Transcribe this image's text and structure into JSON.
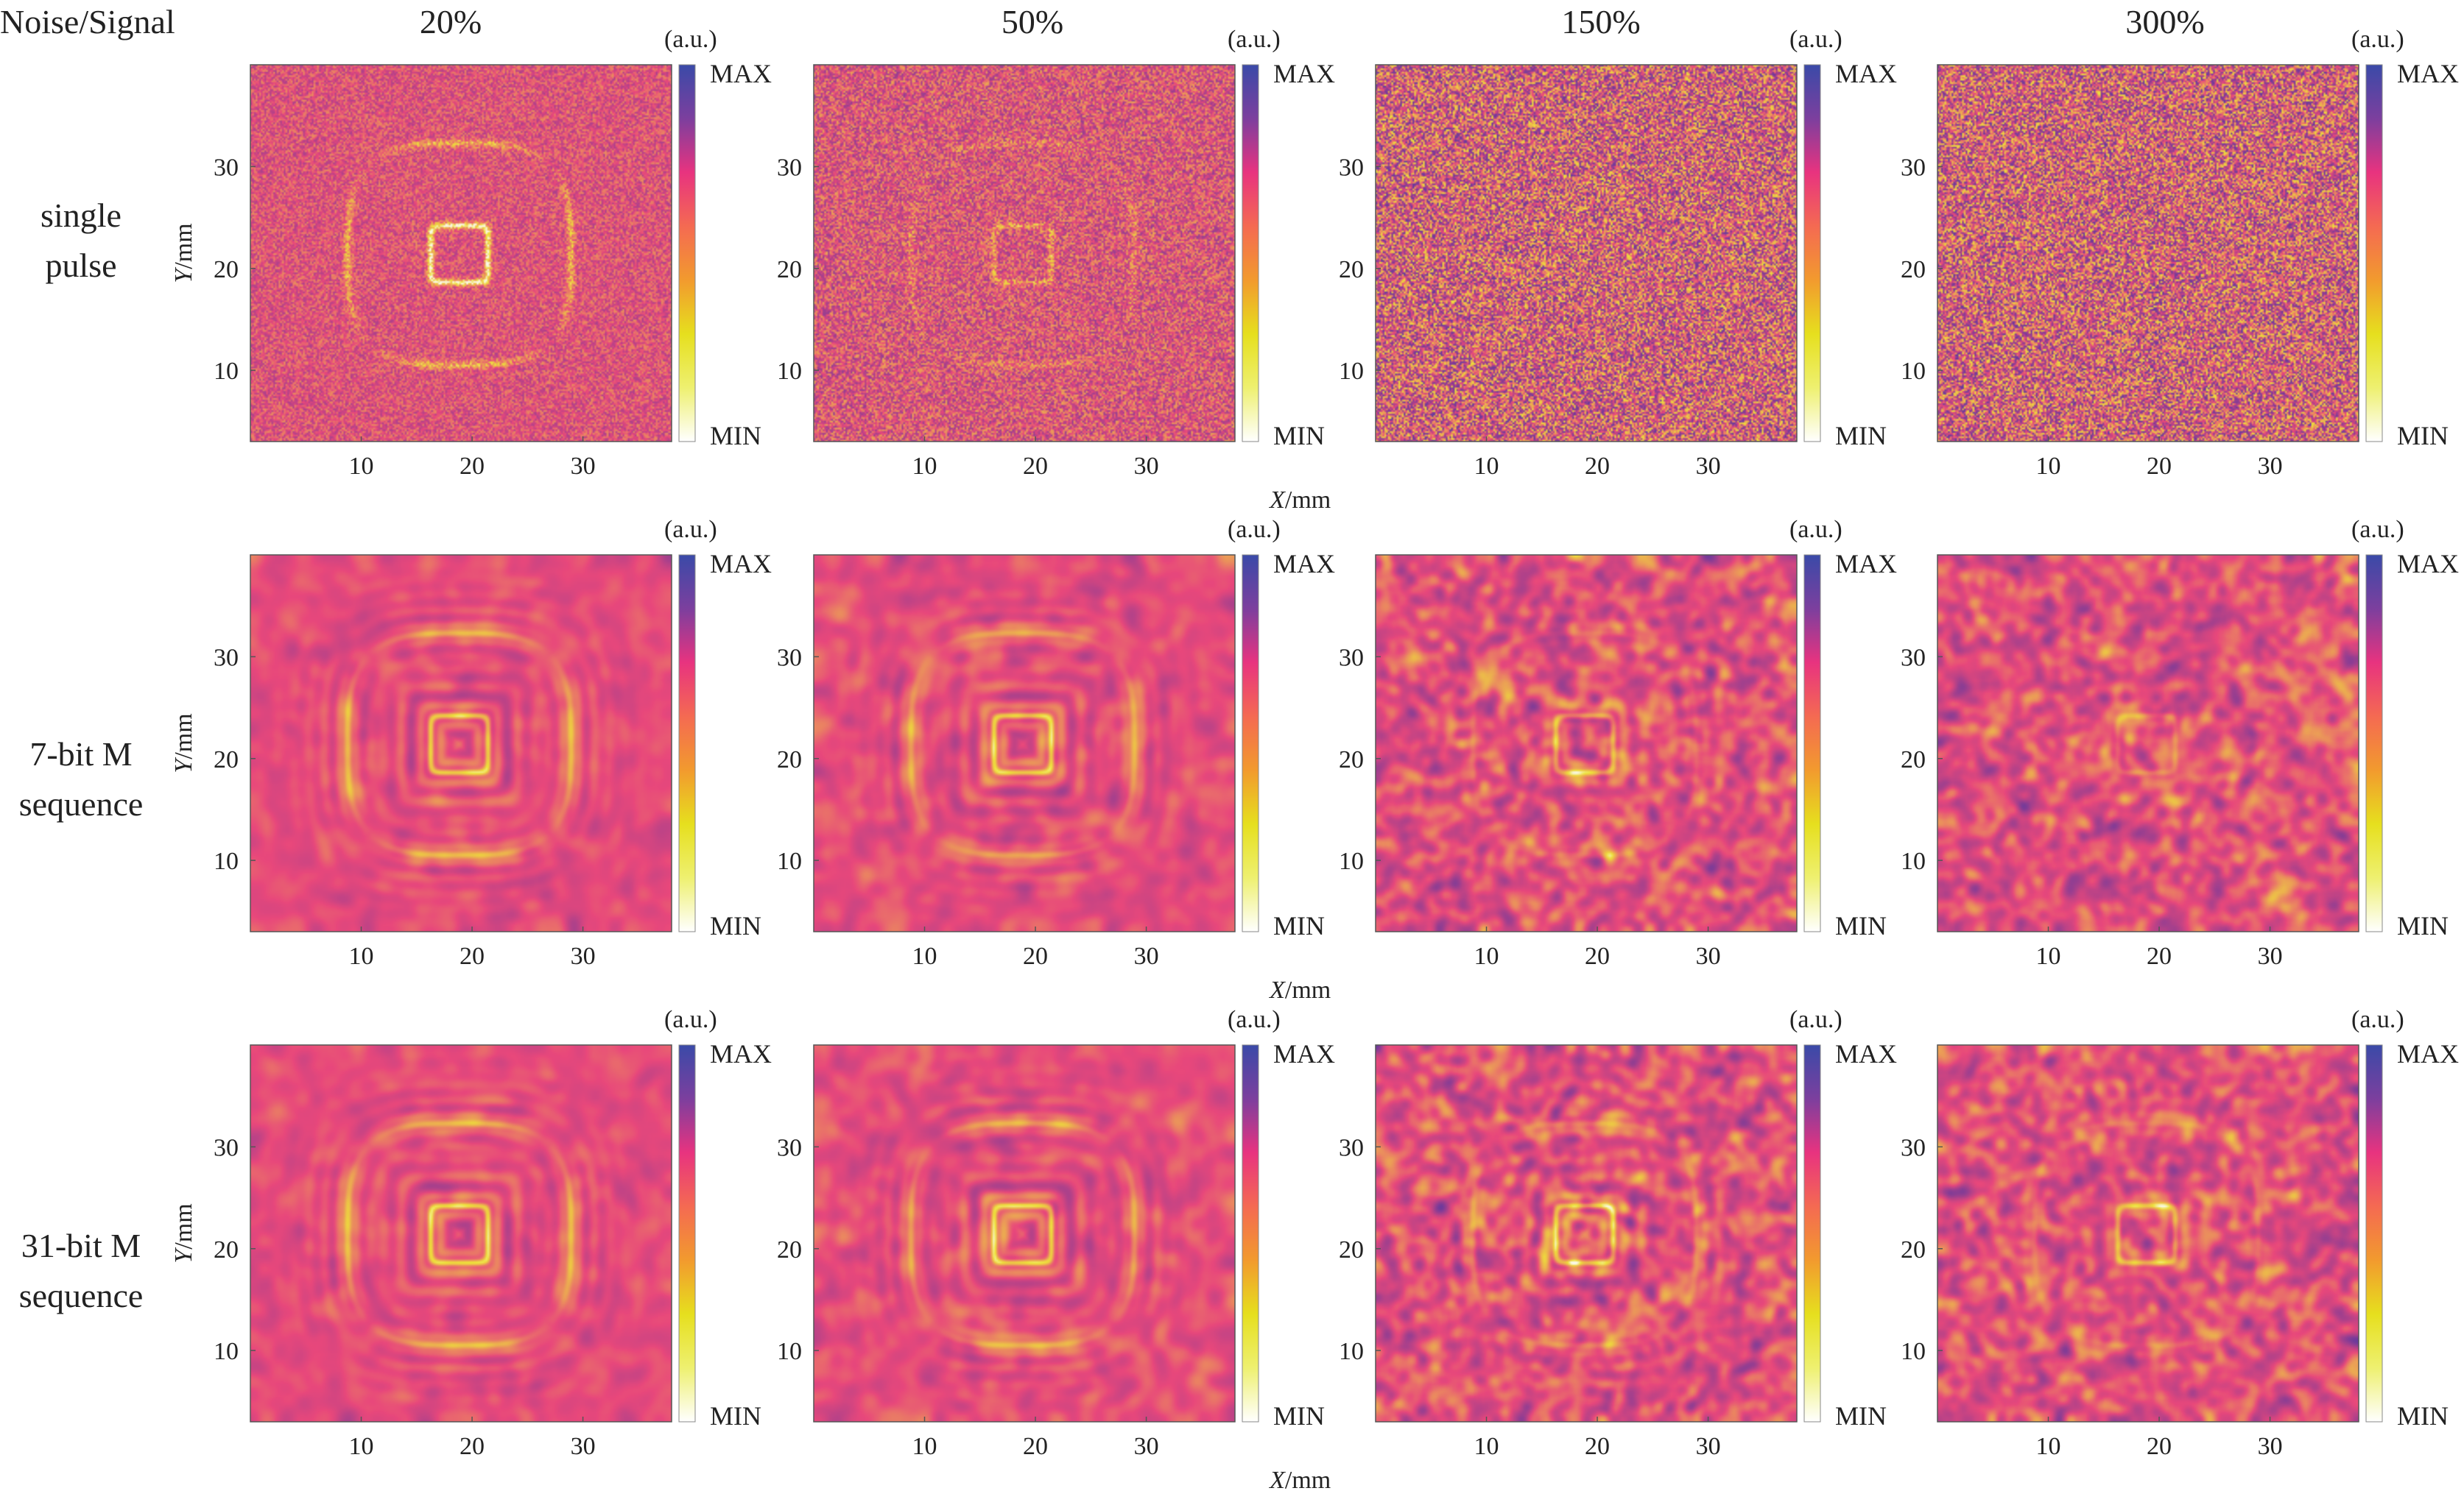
{
  "header": {
    "corner_label": "Noise/Signal",
    "columns": [
      "20%",
      "50%",
      "150%",
      "300%"
    ]
  },
  "rows": [
    {
      "label_lines": [
        "single",
        "pulse"
      ]
    },
    {
      "label_lines": [
        "7-bit M",
        "sequence"
      ]
    },
    {
      "label_lines": [
        "31-bit M",
        "sequence"
      ]
    }
  ],
  "axes": {
    "xlabel_var": "X",
    "xlabel_unit": "/mm",
    "ylabel_var": "Y",
    "ylabel_unit": "/mm",
    "xticks": [
      10,
      20,
      30
    ],
    "yticks": [
      10,
      20,
      30
    ]
  },
  "colorbar": {
    "unit": "(a.u.)",
    "max_label": "MAX",
    "min_label": "MIN",
    "stops": [
      "#3a4aa8",
      "#7c3f9e",
      "#e8337f",
      "#f46a52",
      "#f29a2e",
      "#e6df1e",
      "#eef070",
      "#ffffff"
    ]
  },
  "chart_data": {
    "type": "heatmap",
    "description_grid": "3 rows (excitation type) x 4 columns (noise/signal ratio)",
    "xlim": [
      0,
      38
    ],
    "ylim": [
      3,
      40
    ],
    "column_noise_levels": [
      "20%",
      "50%",
      "150%",
      "300%"
    ],
    "row_excitations": [
      "single pulse",
      "7-bit M sequence",
      "31-bit M sequence"
    ],
    "colors": {
      "background": "#e84a7c",
      "low": "#f2e23a",
      "high": "#6a3c9a"
    },
    "panels": [
      {
        "row": 0,
        "col": 0,
        "noise": 0.2,
        "smoothness": "fine",
        "square_strength": 0.85,
        "ring_strength": 0.55
      },
      {
        "row": 0,
        "col": 1,
        "noise": 0.5,
        "smoothness": "fine",
        "square_strength": 0.35,
        "ring_strength": 0.25
      },
      {
        "row": 0,
        "col": 2,
        "noise": 1.5,
        "smoothness": "fine",
        "square_strength": 0.05,
        "ring_strength": 0.0
      },
      {
        "row": 0,
        "col": 3,
        "noise": 3.0,
        "smoothness": "fine",
        "square_strength": 0.0,
        "ring_strength": 0.0
      },
      {
        "row": 1,
        "col": 0,
        "noise": 0.2,
        "smoothness": "smooth",
        "square_strength": 1.0,
        "ring_strength": 0.9
      },
      {
        "row": 1,
        "col": 1,
        "noise": 0.5,
        "smoothness": "smooth",
        "square_strength": 1.0,
        "ring_strength": 0.7
      },
      {
        "row": 1,
        "col": 2,
        "noise": 1.5,
        "smoothness": "blobby",
        "square_strength": 0.7,
        "ring_strength": 0.35
      },
      {
        "row": 1,
        "col": 3,
        "noise": 3.0,
        "smoothness": "blobby",
        "square_strength": 0.3,
        "ring_strength": 0.12
      },
      {
        "row": 2,
        "col": 0,
        "noise": 0.2,
        "smoothness": "smooth",
        "square_strength": 1.0,
        "ring_strength": 0.9
      },
      {
        "row": 2,
        "col": 1,
        "noise": 0.5,
        "smoothness": "smooth",
        "square_strength": 1.0,
        "ring_strength": 0.8
      },
      {
        "row": 2,
        "col": 2,
        "noise": 1.5,
        "smoothness": "blobby",
        "square_strength": 0.9,
        "ring_strength": 0.55
      },
      {
        "row": 2,
        "col": 3,
        "noise": 3.0,
        "smoothness": "blobby",
        "square_strength": 0.65,
        "ring_strength": 0.35
      }
    ]
  }
}
